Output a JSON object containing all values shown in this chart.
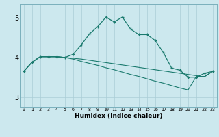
{
  "xlabel": "Humidex (Indice chaleur)",
  "background_color": "#cce8ee",
  "grid_color": "#aacdd6",
  "line_color": "#1a7a6e",
  "xlim": [
    -0.5,
    23.5
  ],
  "ylim": [
    2.75,
    5.35
  ],
  "yticks": [
    3,
    4,
    5
  ],
  "xticks": [
    0,
    1,
    2,
    3,
    4,
    5,
    6,
    7,
    8,
    9,
    10,
    11,
    12,
    13,
    14,
    15,
    16,
    17,
    18,
    19,
    20,
    21,
    22,
    23
  ],
  "series1_x": [
    0,
    1,
    2,
    3,
    4,
    5,
    6,
    7,
    8,
    9,
    10,
    11,
    12,
    13,
    14,
    15,
    16,
    17,
    18,
    19,
    20,
    21,
    22,
    23
  ],
  "series1_y": [
    3.65,
    3.88,
    4.02,
    4.02,
    4.02,
    4.0,
    4.08,
    4.32,
    4.6,
    4.78,
    5.02,
    4.9,
    5.02,
    4.72,
    4.58,
    4.58,
    4.43,
    4.12,
    3.73,
    3.68,
    3.5,
    3.5,
    3.6,
    3.65
  ],
  "series2_x": [
    0,
    1,
    2,
    3,
    4,
    5,
    6,
    7,
    8,
    9,
    10,
    11,
    12,
    13,
    14,
    15,
    16,
    17,
    18,
    19,
    20,
    21,
    22,
    23
  ],
  "series2_y": [
    3.65,
    3.88,
    4.02,
    4.02,
    4.02,
    4.0,
    3.98,
    3.96,
    3.93,
    3.9,
    3.87,
    3.84,
    3.81,
    3.78,
    3.75,
    3.72,
    3.69,
    3.66,
    3.63,
    3.6,
    3.57,
    3.54,
    3.51,
    3.65
  ],
  "series3_x": [
    0,
    1,
    2,
    3,
    4,
    5,
    6,
    7,
    8,
    9,
    10,
    11,
    12,
    13,
    14,
    15,
    16,
    17,
    18,
    19,
    20,
    21,
    22,
    23
  ],
  "series3_y": [
    3.65,
    3.88,
    4.02,
    4.02,
    4.02,
    4.0,
    3.96,
    3.9,
    3.85,
    3.8,
    3.74,
    3.69,
    3.63,
    3.57,
    3.52,
    3.46,
    3.4,
    3.35,
    3.29,
    3.23,
    3.18,
    3.52,
    3.52,
    3.65
  ]
}
